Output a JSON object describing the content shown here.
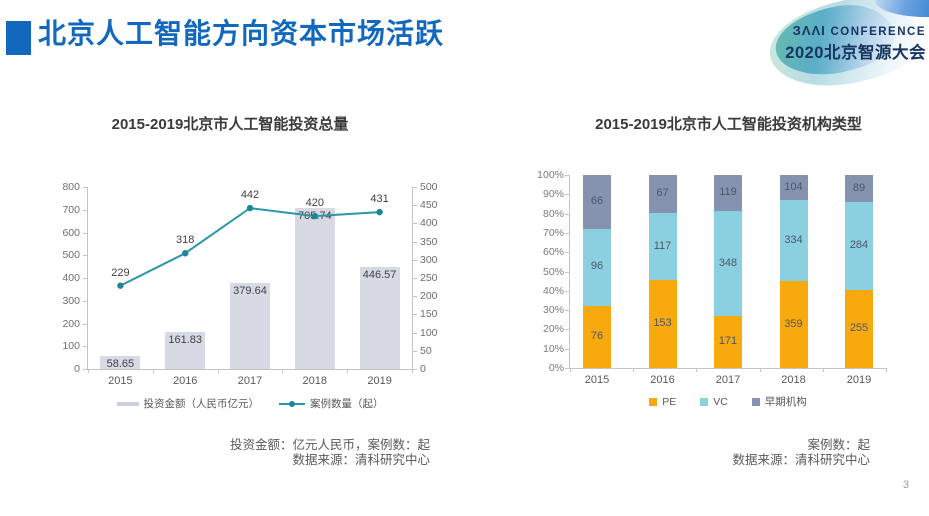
{
  "slide": {
    "title": "北京人工智能方向资本市场活跃",
    "page_number": "3",
    "accent_color": "#1268bd"
  },
  "logo": {
    "baai": "ЗΛΛI",
    "conference": "CONFERENCE",
    "year_line": "2020北京智源大会"
  },
  "chart_data": [
    {
      "id": "investment-total",
      "type": "bar+line",
      "title": "2015-2019北京市人工智能投资总量",
      "categories": [
        "2015",
        "2016",
        "2017",
        "2018",
        "2019"
      ],
      "series": [
        {
          "name": "投资金额（人民币亿元）",
          "type": "bar",
          "axis": "left",
          "color": "#d7dae4",
          "values": [
            58.65,
            161.83,
            379.64,
            705.74,
            446.57
          ]
        },
        {
          "name": "案例数量（起）",
          "type": "line",
          "axis": "right",
          "color": "#2a96a8",
          "marker_color": "#1e8496",
          "values": [
            229,
            318,
            442,
            420,
            431
          ]
        }
      ],
      "left_axis": {
        "min": 0,
        "max": 800,
        "step": 100
      },
      "right_axis": {
        "min": 0,
        "max": 500,
        "step": 50
      },
      "grid": false,
      "legend_position": "bottom",
      "caption_lines": [
        "投资金额：亿元人民币，案例数：起",
        "数据来源：清科研究中心"
      ]
    },
    {
      "id": "institution-types",
      "type": "stacked-bar-100pct",
      "title": "2015-2019北京市人工智能投资机构类型",
      "categories": [
        "2015",
        "2016",
        "2017",
        "2018",
        "2019"
      ],
      "series": [
        {
          "name": "PE",
          "color": "#f8a90d",
          "values": [
            76,
            153,
            171,
            359,
            255
          ]
        },
        {
          "name": "VC",
          "color": "#8bd0e1",
          "values": [
            96,
            117,
            348,
            334,
            284
          ]
        },
        {
          "name": "早期机构",
          "color": "#8593af",
          "values": [
            66,
            67,
            119,
            104,
            89
          ]
        }
      ],
      "y_axis": {
        "min": 0,
        "max": 100,
        "step": 10,
        "format": "percent"
      },
      "grid": false,
      "legend_position": "bottom",
      "caption_lines": [
        "案例数：起",
        "数据来源：清科研究中心"
      ]
    }
  ]
}
